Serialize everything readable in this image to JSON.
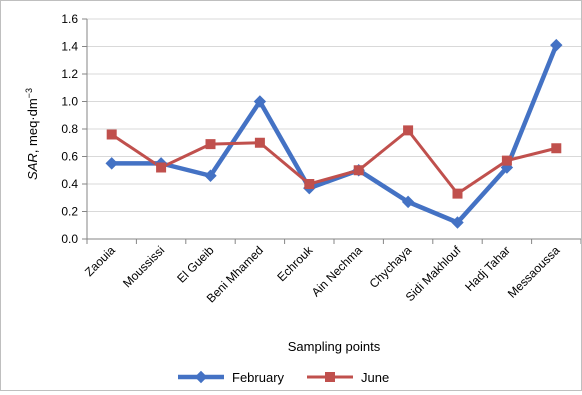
{
  "chart_data": {
    "type": "line",
    "categories": [
      "Zaouia",
      "Moussissi",
      "El Gueib",
      "Beni Mhamed",
      "Echrouk",
      "Ain Nechma",
      "Chychaya",
      "Sidi Makhlouf",
      "Hadj Tahar",
      "Messaoussa"
    ],
    "series": [
      {
        "name": "February",
        "color": "#4472c4",
        "marker": "diamond",
        "values": [
          0.55,
          0.55,
          0.46,
          1.0,
          0.37,
          0.5,
          0.27,
          0.12,
          0.52,
          1.41
        ]
      },
      {
        "name": "June",
        "color": "#c0504d",
        "marker": "square",
        "values": [
          0.76,
          0.52,
          0.69,
          0.7,
          0.4,
          0.5,
          0.79,
          0.33,
          0.57,
          0.66
        ]
      }
    ],
    "ylim": [
      0,
      1.6
    ],
    "yticks": [
      "0.0",
      "0.2",
      "0.4",
      "0.6",
      "0.8",
      "1.0",
      "1.2",
      "1.4",
      "1.6"
    ],
    "xlabel": "Sampling points",
    "ylabel_italic": "SAR",
    "ylabel_rest": ", meq·dm",
    "ylabel_sup": "−3",
    "grid": true,
    "legend": "bottom"
  }
}
